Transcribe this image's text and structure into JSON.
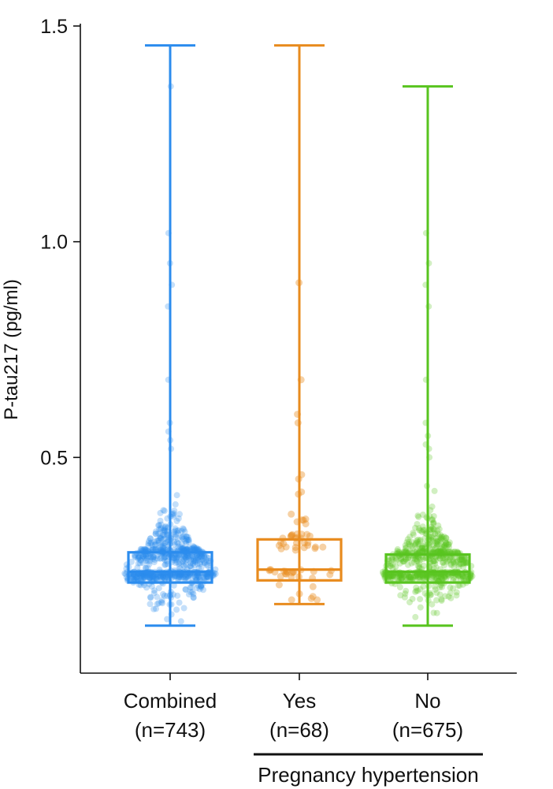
{
  "chart_data": {
    "type": "box",
    "title": "",
    "ylabel": "P-tau217 (pg/ml)",
    "ylim": [
      0,
      1.5
    ],
    "yticks": [
      {
        "value": 0.5,
        "label": "0.5"
      },
      {
        "value": 1.0,
        "label": "1.0"
      },
      {
        "value": 1.5,
        "label": "1.5"
      }
    ],
    "grid": false,
    "group_label": "Pregnancy hypertension",
    "group_members": [
      1,
      2
    ],
    "series": [
      {
        "name": "Combined",
        "label_line1": "Combined",
        "label_line2": "(n=743)",
        "n": 743,
        "color": "#2b8cee",
        "whisker_min": 0.11,
        "q1": 0.21,
        "median": 0.235,
        "q3": 0.28,
        "whisker_max": 1.455,
        "outliers": [
          1.36,
          1.02,
          0.95,
          0.9,
          0.85,
          0.68,
          0.58,
          0.56,
          0.54,
          0.52
        ]
      },
      {
        "name": "Yes",
        "label_line1": "Yes",
        "label_line2": "(n=68)",
        "n": 68,
        "color": "#e88b1e",
        "whisker_min": 0.16,
        "q1": 0.215,
        "median": 0.24,
        "q3": 0.31,
        "whisker_max": 1.455,
        "outliers": [
          0.905,
          0.68,
          0.6,
          0.58,
          0.46,
          0.45,
          0.42,
          0.415
        ]
      },
      {
        "name": "No",
        "label_line1": "No",
        "label_line2": "(n=675)",
        "n": 675,
        "color": "#58c41f",
        "whisker_min": 0.11,
        "q1": 0.21,
        "median": 0.235,
        "q3": 0.275,
        "whisker_max": 1.36,
        "outliers": [
          1.02,
          0.95,
          0.9,
          0.85,
          0.68,
          0.58,
          0.55,
          0.53,
          0.52,
          0.5
        ]
      }
    ]
  }
}
